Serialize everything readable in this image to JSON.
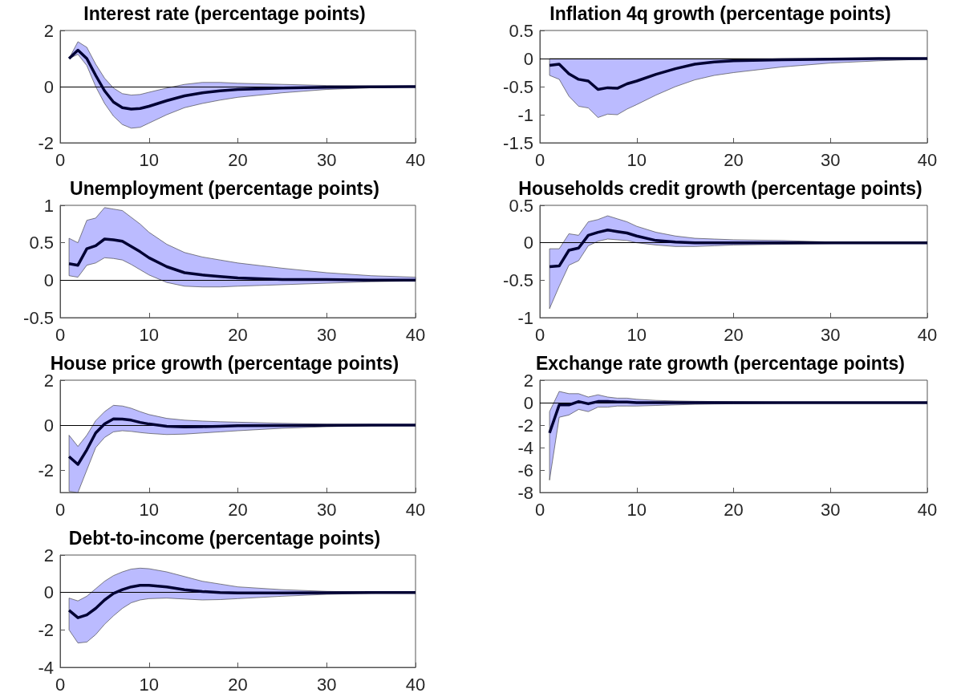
{
  "chart_data": [
    {
      "type": "line",
      "title": "Interest rate (percentage points)",
      "xlim": [
        0,
        40
      ],
      "xticks": [
        0,
        10,
        20,
        30,
        40
      ],
      "ylim": [
        -2,
        2
      ],
      "yticks": [
        -2,
        0,
        2
      ],
      "ref_lines": [
        {
          "axis": "y",
          "value": 0,
          "color": "#000000"
        }
      ],
      "series": [
        {
          "color": "#000033",
          "x": [
            1,
            2,
            3,
            4,
            5,
            6,
            7,
            8,
            9,
            10,
            12,
            14,
            16,
            18,
            20,
            25,
            30,
            35,
            40
          ],
          "values": [
            1.0,
            1.3,
            1.0,
            0.4,
            -0.15,
            -0.55,
            -0.75,
            -0.8,
            -0.78,
            -0.7,
            -0.5,
            -0.33,
            -0.22,
            -0.15,
            -0.1,
            -0.05,
            -0.02,
            -0.01,
            0
          ],
          "upper": [
            1.0,
            1.6,
            1.4,
            0.8,
            0.3,
            -0.05,
            -0.25,
            -0.3,
            -0.28,
            -0.2,
            -0.05,
            0.08,
            0.15,
            0.15,
            0.12,
            0.08,
            0.04,
            0.02,
            0
          ],
          "lower": [
            1.0,
            1.15,
            0.75,
            0.0,
            -0.6,
            -1.05,
            -1.35,
            -1.48,
            -1.45,
            -1.3,
            -1.0,
            -0.75,
            -0.6,
            -0.48,
            -0.38,
            -0.22,
            -0.1,
            -0.04,
            0
          ]
        }
      ]
    },
    {
      "type": "line",
      "title": "Inflation 4q growth (percentage points)",
      "xlim": [
        0,
        40
      ],
      "xticks": [
        0,
        10,
        20,
        30,
        40
      ],
      "ylim": [
        -1.5,
        0.5
      ],
      "yticks": [
        -1.5,
        -1,
        -0.5,
        0,
        0.5
      ],
      "ref_lines": [
        {
          "axis": "y",
          "value": 0,
          "color": "#000000"
        }
      ],
      "series": [
        {
          "color": "#000033",
          "x": [
            1,
            2,
            3,
            4,
            5,
            6,
            7,
            8,
            9,
            10,
            12,
            14,
            16,
            18,
            20,
            25,
            30,
            35,
            40
          ],
          "values": [
            -0.12,
            -0.1,
            -0.27,
            -0.37,
            -0.4,
            -0.55,
            -0.52,
            -0.53,
            -0.45,
            -0.4,
            -0.28,
            -0.18,
            -0.1,
            -0.06,
            -0.04,
            -0.02,
            -0.01,
            0,
            0
          ],
          "upper": [
            0,
            0,
            0,
            0,
            0,
            0,
            0,
            0,
            0,
            0,
            0,
            0,
            0,
            0,
            0,
            0,
            0,
            0,
            0
          ],
          "lower": [
            -0.3,
            -0.37,
            -0.67,
            -0.85,
            -0.88,
            -1.05,
            -0.99,
            -1.0,
            -0.9,
            -0.82,
            -0.65,
            -0.5,
            -0.38,
            -0.3,
            -0.25,
            -0.15,
            -0.08,
            -0.04,
            -0.01
          ]
        }
      ]
    },
    {
      "type": "line",
      "title": "Unemployment (percentage points)",
      "xlim": [
        0,
        40
      ],
      "xticks": [
        0,
        10,
        20,
        30,
        40
      ],
      "ylim": [
        -0.5,
        1
      ],
      "yticks": [
        -0.5,
        0,
        0.5,
        1
      ],
      "ref_lines": [
        {
          "axis": "y",
          "value": 0,
          "color": "#000000"
        }
      ],
      "series": [
        {
          "color": "#000033",
          "x": [
            1,
            2,
            3,
            4,
            5,
            6,
            7,
            8,
            9,
            10,
            12,
            14,
            16,
            18,
            20,
            25,
            30,
            35,
            40
          ],
          "values": [
            0.22,
            0.2,
            0.42,
            0.46,
            0.55,
            0.54,
            0.52,
            0.45,
            0.38,
            0.3,
            0.18,
            0.1,
            0.07,
            0.05,
            0.03,
            0.01,
            0.01,
            0,
            0
          ],
          "upper": [
            0.56,
            0.5,
            0.8,
            0.83,
            0.97,
            0.95,
            0.93,
            0.84,
            0.75,
            0.64,
            0.48,
            0.37,
            0.31,
            0.27,
            0.23,
            0.16,
            0.1,
            0.06,
            0.04
          ],
          "lower": [
            0.06,
            0.04,
            0.2,
            0.23,
            0.3,
            0.29,
            0.27,
            0.21,
            0.14,
            0.07,
            -0.03,
            -0.08,
            -0.09,
            -0.09,
            -0.08,
            -0.06,
            -0.04,
            -0.02,
            -0.01
          ]
        }
      ]
    },
    {
      "type": "line",
      "title": "Households credit growth (percentage points)",
      "xlim": [
        0,
        40
      ],
      "xticks": [
        0,
        10,
        20,
        30,
        40
      ],
      "ylim": [
        -1,
        0.5
      ],
      "yticks": [
        -1,
        -0.5,
        0,
        0.5
      ],
      "ref_lines": [
        {
          "axis": "y",
          "value": 0,
          "color": "#000000"
        }
      ],
      "series": [
        {
          "color": "#000033",
          "x": [
            1,
            2,
            3,
            4,
            5,
            6,
            7,
            8,
            9,
            10,
            12,
            14,
            16,
            18,
            20,
            25,
            30,
            35,
            40
          ],
          "values": [
            -0.32,
            -0.31,
            -0.1,
            -0.07,
            0.1,
            0.14,
            0.17,
            0.15,
            0.13,
            0.09,
            0.03,
            0.01,
            0,
            0,
            0,
            0,
            0,
            0,
            0
          ],
          "upper": [
            -0.08,
            -0.08,
            0.12,
            0.1,
            0.28,
            0.31,
            0.36,
            0.32,
            0.28,
            0.22,
            0.14,
            0.09,
            0.06,
            0.05,
            0.04,
            0.03,
            0.01,
            0,
            0
          ],
          "lower": [
            -0.88,
            -0.58,
            -0.3,
            -0.24,
            -0.04,
            0.02,
            0.05,
            0.04,
            0.03,
            0,
            -0.03,
            -0.05,
            -0.05,
            -0.04,
            -0.03,
            -0.02,
            -0.01,
            0,
            0
          ]
        }
      ]
    },
    {
      "type": "line",
      "title": "House price growth (percentage points)",
      "xlim": [
        0,
        40
      ],
      "xticks": [
        0,
        10,
        20,
        30,
        40
      ],
      "ylim": [
        -3,
        2
      ],
      "yticks": [
        -2,
        0,
        2
      ],
      "ref_lines": [
        {
          "axis": "y",
          "value": 0,
          "color": "#000000"
        }
      ],
      "series": [
        {
          "color": "#000033",
          "x": [
            1,
            2,
            3,
            4,
            5,
            6,
            7,
            8,
            9,
            10,
            12,
            14,
            16,
            18,
            20,
            25,
            30,
            35,
            40
          ],
          "values": [
            -1.4,
            -1.75,
            -1.1,
            -0.35,
            0.05,
            0.28,
            0.27,
            0.22,
            0.12,
            0.05,
            -0.05,
            -0.08,
            -0.07,
            -0.05,
            -0.03,
            -0.02,
            -0.01,
            0,
            0
          ],
          "upper": [
            -0.45,
            -0.95,
            -0.45,
            0.2,
            0.6,
            0.88,
            0.85,
            0.75,
            0.6,
            0.47,
            0.3,
            0.22,
            0.18,
            0.15,
            0.13,
            0.08,
            0.04,
            0.02,
            0
          ],
          "lower": [
            -2.95,
            -3.0,
            -2.0,
            -1.0,
            -0.55,
            -0.3,
            -0.25,
            -0.28,
            -0.33,
            -0.37,
            -0.42,
            -0.4,
            -0.35,
            -0.3,
            -0.25,
            -0.14,
            -0.07,
            -0.03,
            0
          ]
        }
      ]
    },
    {
      "type": "line",
      "title": "Exchange rate growth (percentage points)",
      "xlim": [
        0,
        40
      ],
      "xticks": [
        0,
        10,
        20,
        30,
        40
      ],
      "ylim": [
        -8,
        2
      ],
      "yticks": [
        -8,
        -6,
        -4,
        -2,
        0,
        2
      ],
      "ref_lines": [
        {
          "axis": "y",
          "value": 0,
          "color": "#000000"
        }
      ],
      "series": [
        {
          "color": "#000033",
          "x": [
            1,
            2,
            3,
            4,
            5,
            6,
            7,
            8,
            9,
            10,
            12,
            14,
            16,
            18,
            20,
            25,
            30,
            35,
            40
          ],
          "values": [
            -2.7,
            -0.2,
            -0.2,
            0.1,
            -0.1,
            0.1,
            0.1,
            0.05,
            0.05,
            0,
            0,
            0,
            0,
            0,
            0,
            0,
            0,
            0,
            0
          ],
          "upper": [
            -0.8,
            1.0,
            0.8,
            0.8,
            0.5,
            0.7,
            0.5,
            0.4,
            0.4,
            0.3,
            0.2,
            0.15,
            0.12,
            0.1,
            0.08,
            0.03,
            0.01,
            0,
            0
          ],
          "lower": [
            -6.9,
            -1.3,
            -1.1,
            -0.6,
            -0.8,
            -0.4,
            -0.4,
            -0.3,
            -0.3,
            -0.3,
            -0.25,
            -0.2,
            -0.15,
            -0.12,
            -0.1,
            -0.05,
            -0.02,
            0,
            0
          ]
        }
      ]
    },
    {
      "type": "line",
      "title": "Debt-to-income (percentage points)",
      "xlim": [
        0,
        40
      ],
      "xticks": [
        0,
        10,
        20,
        30,
        40
      ],
      "ylim": [
        -4,
        2
      ],
      "yticks": [
        -4,
        -2,
        0,
        2
      ],
      "ref_lines": [
        {
          "axis": "y",
          "value": 0,
          "color": "#000000"
        }
      ],
      "series": [
        {
          "color": "#000033",
          "x": [
            1,
            2,
            3,
            4,
            5,
            6,
            7,
            8,
            9,
            10,
            12,
            14,
            16,
            18,
            20,
            25,
            30,
            35,
            40
          ],
          "values": [
            -0.95,
            -1.35,
            -1.2,
            -0.85,
            -0.4,
            -0.05,
            0.15,
            0.3,
            0.38,
            0.38,
            0.3,
            0.15,
            0.05,
            0,
            -0.02,
            -0.02,
            -0.01,
            0,
            0
          ],
          "upper": [
            -0.3,
            -0.45,
            -0.2,
            0.2,
            0.6,
            0.9,
            1.1,
            1.25,
            1.3,
            1.27,
            1.1,
            0.85,
            0.6,
            0.45,
            0.3,
            0.15,
            0.06,
            0.02,
            0
          ],
          "lower": [
            -2.0,
            -2.7,
            -2.65,
            -2.25,
            -1.7,
            -1.25,
            -0.85,
            -0.55,
            -0.4,
            -0.33,
            -0.3,
            -0.35,
            -0.4,
            -0.38,
            -0.33,
            -0.2,
            -0.1,
            -0.04,
            0
          ]
        }
      ]
    }
  ]
}
